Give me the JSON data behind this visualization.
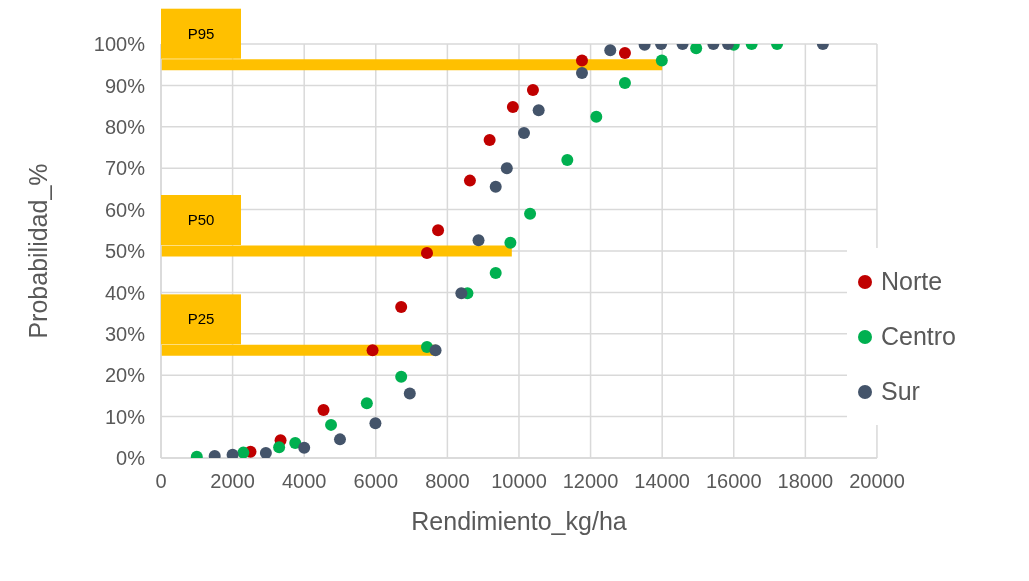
{
  "chart_data": {
    "type": "scatter",
    "xlabel": "Rendimiento_kg/ha",
    "ylabel": "Probabilidad_%",
    "xlim": [
      0,
      20000
    ],
    "xticks": [
      0,
      2000,
      4000,
      6000,
      8000,
      10000,
      12000,
      14000,
      16000,
      18000,
      20000
    ],
    "ylim": [
      0,
      100
    ],
    "yticks": [
      {
        "value": 0,
        "label": "0%"
      },
      {
        "value": 10,
        "label": "10%"
      },
      {
        "value": 20,
        "label": "20%"
      },
      {
        "value": 30,
        "label": "30%"
      },
      {
        "value": 40,
        "label": "40%"
      },
      {
        "value": 50,
        "label": "50%"
      },
      {
        "value": 60,
        "label": "60%"
      },
      {
        "value": 70,
        "label": "70%"
      },
      {
        "value": 80,
        "label": "80%"
      },
      {
        "value": 90,
        "label": "90%"
      },
      {
        "value": 100,
        "label": "100%"
      }
    ],
    "grid": true,
    "legend": "right",
    "marker": "circle",
    "series": [
      {
        "name": "Norte",
        "color": "#c00000",
        "x": [
          2500,
          3340,
          4540,
          5910,
          6710,
          7430,
          7740,
          8630,
          9180,
          9830,
          10390,
          11760,
          12960
        ],
        "values": [
          1.5,
          4.3,
          11.6,
          26,
          36.5,
          49.5,
          55,
          67,
          76.8,
          84.8,
          88.9,
          96,
          97.8
        ]
      },
      {
        "name": "Centro",
        "color": "#00b050",
        "x": [
          1000,
          2300,
          3300,
          3750,
          4750,
          5750,
          6710,
          7430,
          8560,
          9350,
          9760,
          10310,
          11350,
          12160,
          12960,
          13990,
          14950,
          16000,
          16500,
          17210
        ],
        "values": [
          0.3,
          1.3,
          2.6,
          3.6,
          8,
          13.2,
          19.6,
          26.8,
          39.8,
          44.7,
          52,
          59,
          72,
          82.4,
          90.6,
          96,
          99,
          99.8,
          100,
          100
        ]
      },
      {
        "name": "Sur",
        "color": "#44546a",
        "x": [
          1500,
          2000,
          2930,
          4000,
          5000,
          5990,
          6950,
          7670,
          8390,
          8870,
          9350,
          9660,
          10140,
          10550,
          11760,
          12550,
          13510,
          13970,
          14570,
          15430,
          15840,
          18490
        ],
        "values": [
          0.5,
          0.8,
          1.2,
          2.5,
          4.5,
          8.4,
          15.6,
          26,
          39.8,
          52.6,
          65.5,
          70,
          78.5,
          84,
          93,
          98.5,
          99.8,
          100,
          100,
          100,
          100,
          100
        ]
      },
      {
        "type": "line",
        "name": "P95",
        "marker": "none",
        "color": "#ffc000",
        "x": [
          0,
          14000
        ],
        "values": [
          95,
          95
        ]
      },
      {
        "type": "line",
        "name": "P50",
        "marker": "none",
        "color": "#ffc000",
        "x": [
          0,
          9800
        ],
        "values": [
          50,
          50
        ]
      },
      {
        "type": "line",
        "name": "P25",
        "marker": "none",
        "color": "#ffc000",
        "x": [
          0,
          7700
        ],
        "values": [
          26,
          26
        ]
      }
    ]
  }
}
